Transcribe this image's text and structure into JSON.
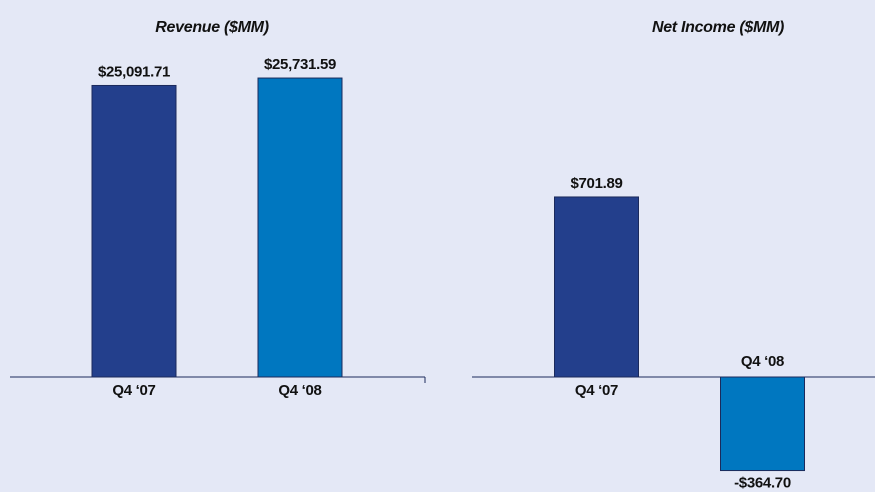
{
  "chart_data": [
    {
      "type": "bar",
      "title": "Revenue ($MM)",
      "categories": [
        "Q4 ‘07",
        "Q4 ‘08"
      ],
      "values": [
        25091.71,
        25731.59
      ],
      "value_labels": [
        "$25,091.71",
        "$25,731.59"
      ],
      "colors": [
        "#233f8c",
        "#0077c0"
      ],
      "ylim": [
        0,
        27000
      ]
    },
    {
      "type": "bar",
      "title": "Net Income ($MM)",
      "categories": [
        "Q4 ‘07",
        "Q4 ‘08"
      ],
      "values": [
        701.89,
        -364.7
      ],
      "value_labels": [
        "$701.89",
        "-$364.70"
      ],
      "colors": [
        "#233f8c",
        "#0077c0"
      ],
      "ylim": [
        -400,
        1200
      ]
    }
  ]
}
